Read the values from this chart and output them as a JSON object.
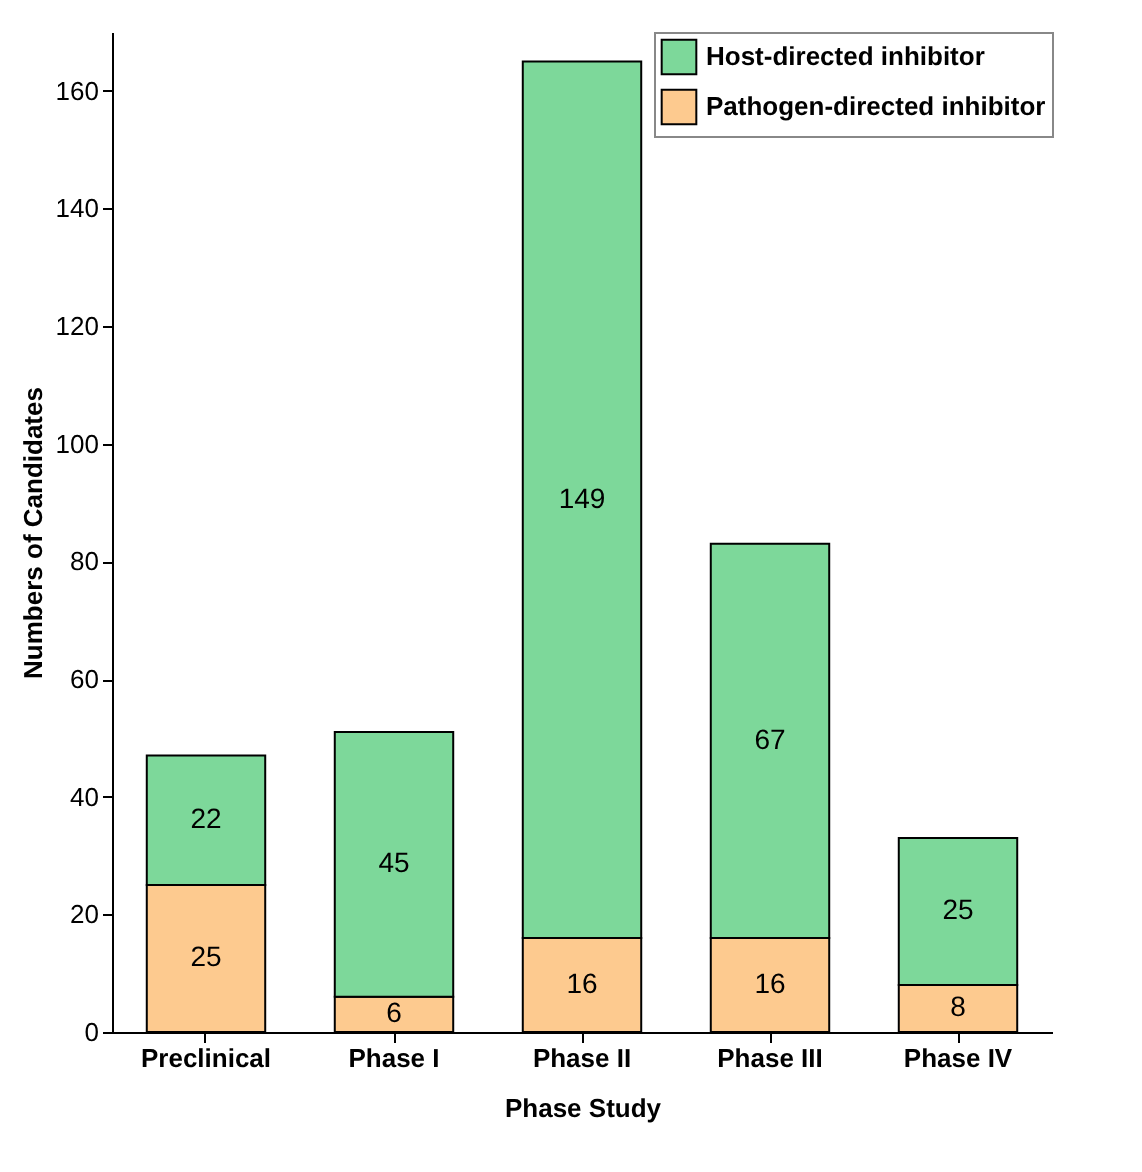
{
  "chart_data": {
    "type": "bar",
    "stacked": true,
    "xlabel": "Phase Study",
    "ylabel": "Numbers of Candidates",
    "categories": [
      "Preclinical",
      "Phase I",
      "Phase II",
      "Phase III",
      "Phase IV"
    ],
    "series": [
      {
        "name": "Pathogen-directed inhibitor",
        "color": "#fdca8f",
        "values": [
          25,
          6,
          16,
          16,
          8
        ]
      },
      {
        "name": "Host-directed inhibitor",
        "color": "#7dd89a",
        "values": [
          22,
          45,
          149,
          67,
          25
        ]
      }
    ],
    "ylim": [
      0,
      170
    ],
    "yticks": [
      0,
      20,
      40,
      60,
      80,
      100,
      120,
      140,
      160
    ],
    "data_labels": true,
    "legend": "top right",
    "grid": false
  }
}
